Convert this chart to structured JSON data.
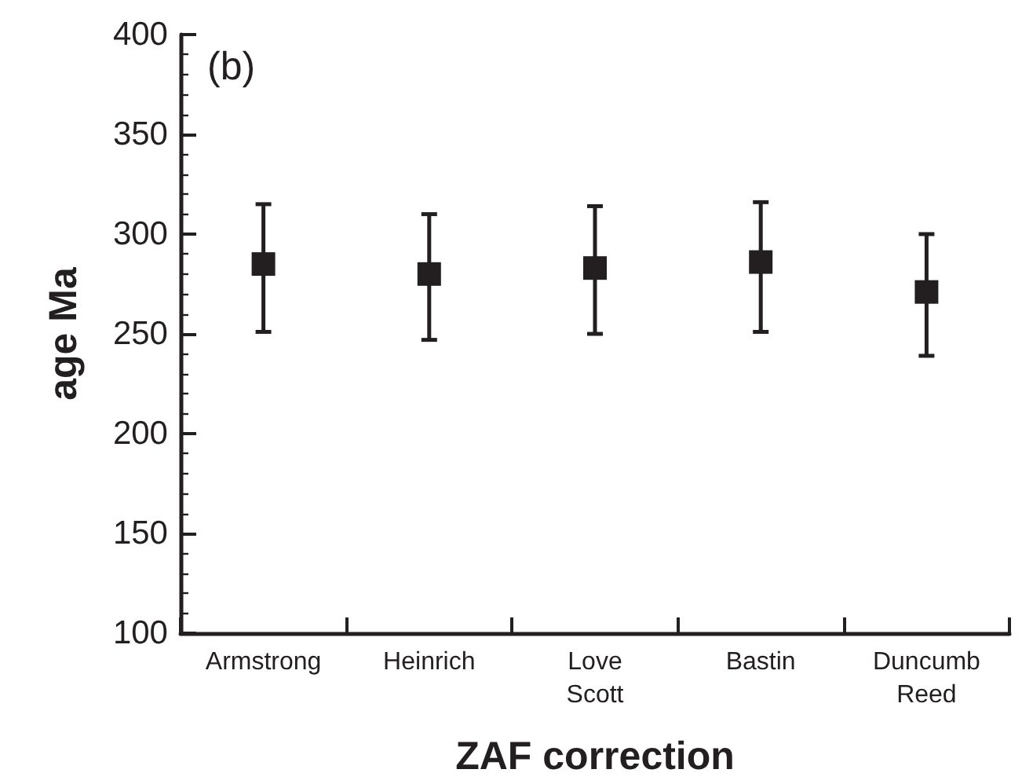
{
  "chart_data": {
    "type": "scatter",
    "xlabel": "ZAF correction",
    "ylabel": "age Ma",
    "annotations": [
      "(b)"
    ],
    "categories": [
      "Armstrong",
      "Heinrich",
      "Love\nScott",
      "Bastin",
      "Duncumb\nReed"
    ],
    "values": [
      285,
      280,
      283,
      286,
      271
    ],
    "errors": [
      [
        251,
        315
      ],
      [
        247,
        310
      ],
      [
        250,
        314
      ],
      [
        251,
        316
      ],
      [
        239,
        300
      ]
    ],
    "color": "#231f20",
    "marker": "square",
    "ylim": [
      100,
      400
    ],
    "yticks": [
      100,
      150,
      200,
      250,
      300,
      350,
      400
    ],
    "grid": false
  }
}
